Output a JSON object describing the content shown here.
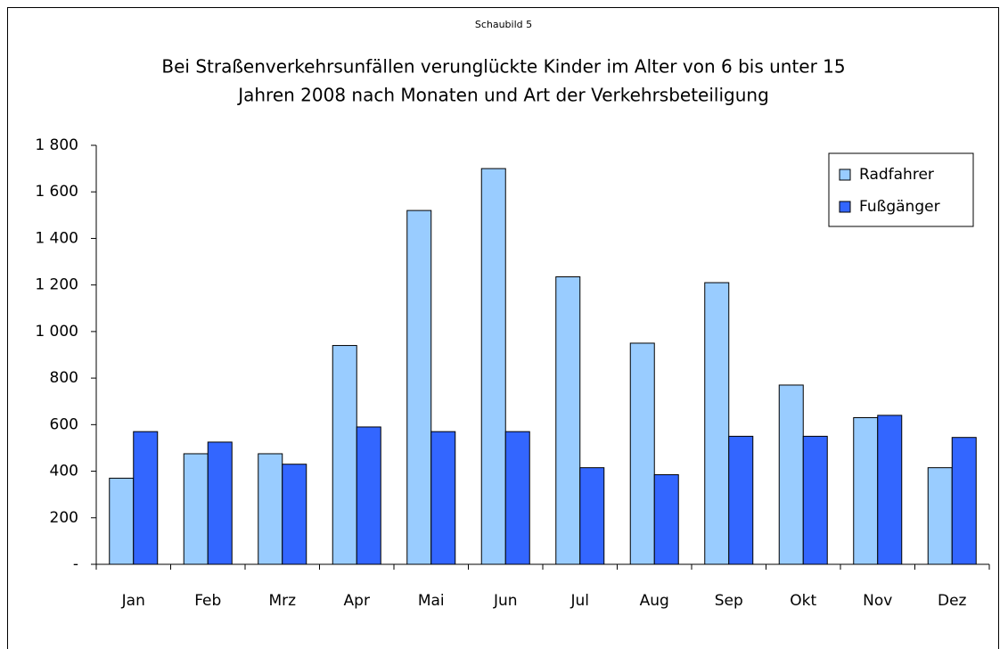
{
  "chart_data": {
    "type": "bar",
    "caption": "Schaubild 5",
    "title": [
      "Bei Straßenverkehrsunfällen verunglückte Kinder im Alter von 6 bis unter 15",
      "Jahren 2008 nach Monaten und Art der Verkehrsbeteiligung"
    ],
    "categories": [
      "Jan",
      "Feb",
      "Mrz",
      "Apr",
      "Mai",
      "Jun",
      "Jul",
      "Aug",
      "Sep",
      "Okt",
      "Nov",
      "Dez"
    ],
    "series": [
      {
        "name": "Radfahrer",
        "color": "#99ccff",
        "values": [
          370,
          475,
          475,
          940,
          1520,
          1700,
          1235,
          950,
          1210,
          770,
          630,
          415
        ]
      },
      {
        "name": "Fußgänger",
        "color": "#3366ff",
        "values": [
          570,
          525,
          430,
          590,
          570,
          570,
          415,
          385,
          550,
          550,
          640,
          545
        ]
      }
    ],
    "ylim": [
      0,
      1800
    ],
    "yticks": [
      {
        "value": 0,
        "label": "-"
      },
      200,
      400,
      600,
      800,
      {
        "value": 1000,
        "label": "1 000"
      },
      {
        "value": 1200,
        "label": "1 200"
      },
      {
        "value": 1400,
        "label": "1 400"
      },
      {
        "value": 1600,
        "label": "1 600"
      },
      {
        "value": 1800,
        "label": "1 800"
      }
    ],
    "legend": "upper right",
    "grid": false
  }
}
